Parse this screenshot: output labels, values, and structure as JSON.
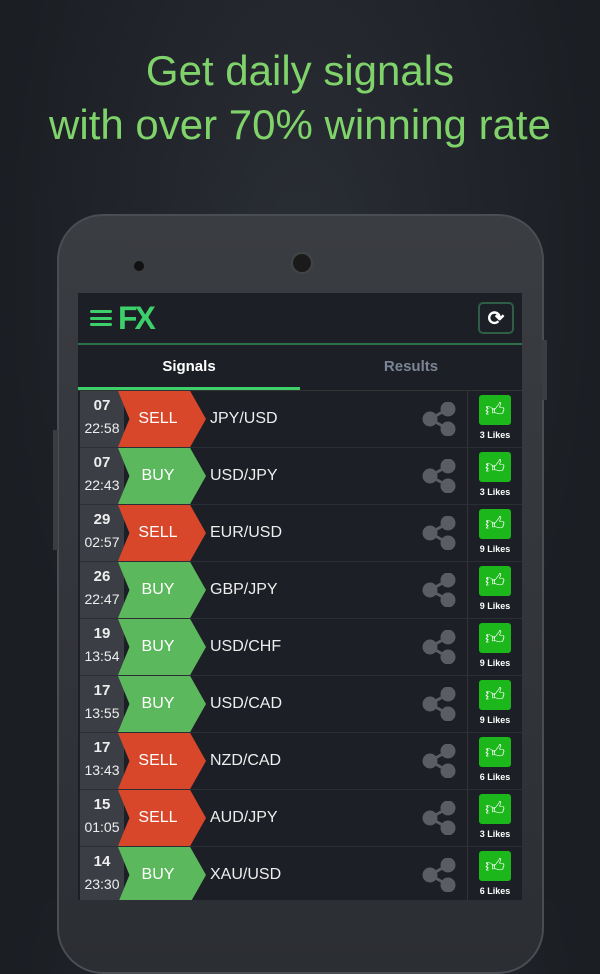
{
  "headline": {
    "line1": "Get daily signals",
    "line2": "with over 70% winning rate"
  },
  "app": {
    "logo": "FX",
    "refresh_icon": "refresh-icon",
    "tabs": [
      {
        "label": "Signals",
        "active": true
      },
      {
        "label": "Results",
        "active": false
      }
    ]
  },
  "colors": {
    "sell": "#d9472b",
    "buy": "#5cb85c",
    "accent": "#3ccf6a",
    "like": "#1bb71b"
  },
  "signals": [
    {
      "day": "07",
      "time": "22:58",
      "action": "SELL",
      "pair": "JPY/USD",
      "likes": "3 Likes"
    },
    {
      "day": "07",
      "time": "22:43",
      "action": "BUY",
      "pair": "USD/JPY",
      "likes": "3 Likes"
    },
    {
      "day": "29",
      "time": "02:57",
      "action": "SELL",
      "pair": "EUR/USD",
      "likes": "9 Likes"
    },
    {
      "day": "26",
      "time": "22:47",
      "action": "BUY",
      "pair": "GBP/JPY",
      "likes": "9 Likes"
    },
    {
      "day": "19",
      "time": "13:54",
      "action": "BUY",
      "pair": "USD/CHF",
      "likes": "9 Likes"
    },
    {
      "day": "17",
      "time": "13:55",
      "action": "BUY",
      "pair": "USD/CAD",
      "likes": "9 Likes"
    },
    {
      "day": "17",
      "time": "13:43",
      "action": "SELL",
      "pair": "NZD/CAD",
      "likes": "6 Likes"
    },
    {
      "day": "15",
      "time": "01:05",
      "action": "SELL",
      "pair": "AUD/JPY",
      "likes": "3 Likes"
    },
    {
      "day": "14",
      "time": "23:30",
      "action": "BUY",
      "pair": "XAU/USD",
      "likes": "6 Likes"
    }
  ]
}
